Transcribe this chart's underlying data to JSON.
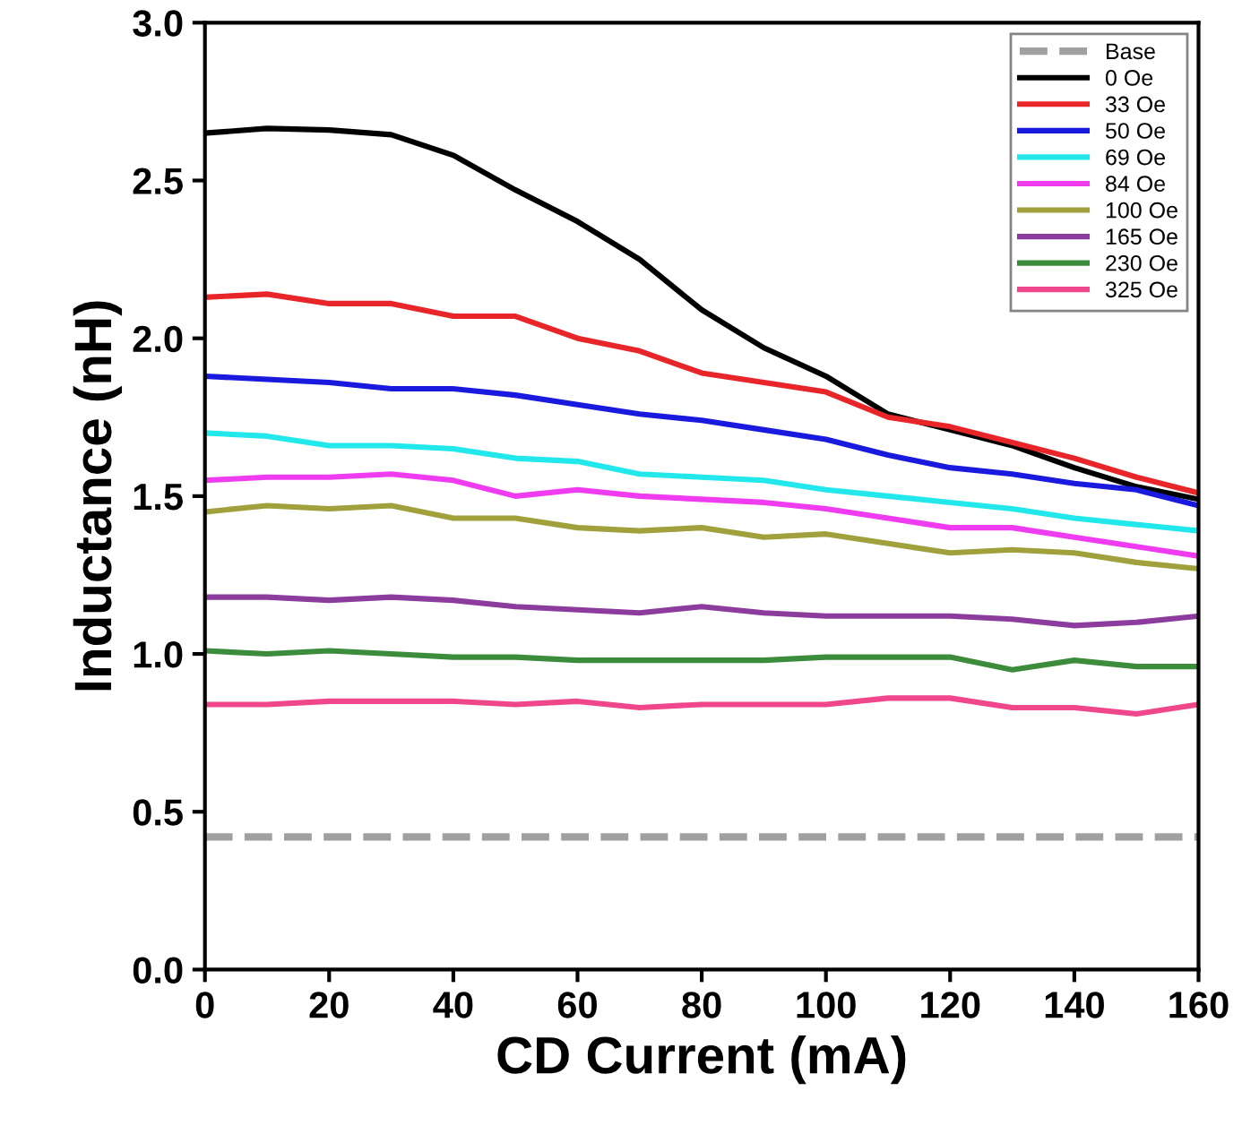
{
  "chart_data": {
    "type": "line",
    "xlabel": "CD Current (mA)",
    "ylabel": "Inductance (nH)",
    "x": [
      0,
      10,
      20,
      30,
      40,
      50,
      60,
      70,
      80,
      90,
      100,
      110,
      120,
      130,
      140,
      150,
      160
    ],
    "xlim": [
      0,
      160
    ],
    "xticks": [
      0,
      20,
      40,
      60,
      80,
      100,
      120,
      140,
      160
    ],
    "ylim": [
      0,
      3.0
    ],
    "yticks": [
      {
        "value": 0,
        "label": "0.0"
      },
      {
        "value": 0.5,
        "label": "0.5"
      },
      {
        "value": 1,
        "label": "1.0"
      },
      {
        "value": 1.5,
        "label": "1.5"
      },
      {
        "value": 2,
        "label": "2.0"
      },
      {
        "value": 2.5,
        "label": "2.5"
      },
      {
        "value": 3,
        "label": "3.0"
      }
    ],
    "grid": false,
    "legend": "top right",
    "marker": "none",
    "series": [
      {
        "name": "Base",
        "color": "#a0a0a0",
        "line_style": "dashed",
        "x": [
          0,
          160
        ],
        "values": [
          0.42,
          0.42
        ]
      },
      {
        "name": "0 Oe",
        "color": "#000000",
        "values": [
          2.65,
          2.665,
          2.66,
          2.645,
          2.58,
          2.47,
          2.37,
          2.25,
          2.09,
          1.97,
          1.88,
          1.76,
          1.71,
          1.66,
          1.59,
          1.53,
          1.49
        ]
      },
      {
        "name": "33 Oe",
        "color": "#e8262a",
        "values": [
          2.13,
          2.14,
          2.11,
          2.11,
          2.07,
          2.07,
          2.0,
          1.96,
          1.89,
          1.86,
          1.83,
          1.75,
          1.72,
          1.67,
          1.62,
          1.56,
          1.51
        ]
      },
      {
        "name": "50 Oe",
        "color": "#1a1adf",
        "values": [
          1.88,
          1.87,
          1.86,
          1.84,
          1.84,
          1.82,
          1.79,
          1.76,
          1.74,
          1.71,
          1.68,
          1.63,
          1.59,
          1.57,
          1.54,
          1.52,
          1.47
        ]
      },
      {
        "name": "69 Oe",
        "color": "#22e8ec",
        "values": [
          1.7,
          1.69,
          1.66,
          1.66,
          1.65,
          1.62,
          1.61,
          1.57,
          1.56,
          1.55,
          1.52,
          1.5,
          1.48,
          1.46,
          1.43,
          1.41,
          1.39
        ]
      },
      {
        "name": "84 Oe",
        "color": "#f03cf0",
        "values": [
          1.55,
          1.56,
          1.56,
          1.57,
          1.55,
          1.5,
          1.52,
          1.5,
          1.49,
          1.48,
          1.46,
          1.43,
          1.4,
          1.4,
          1.37,
          1.34,
          1.31
        ]
      },
      {
        "name": "100 Oe",
        "color": "#a0a03c",
        "values": [
          1.45,
          1.47,
          1.46,
          1.47,
          1.43,
          1.43,
          1.4,
          1.39,
          1.4,
          1.37,
          1.38,
          1.35,
          1.32,
          1.33,
          1.32,
          1.29,
          1.27
        ]
      },
      {
        "name": "165 Oe",
        "color": "#8c3c9c",
        "values": [
          1.18,
          1.18,
          1.17,
          1.18,
          1.17,
          1.15,
          1.14,
          1.13,
          1.15,
          1.13,
          1.12,
          1.12,
          1.12,
          1.11,
          1.09,
          1.1,
          1.12
        ]
      },
      {
        "name": "230 Oe",
        "color": "#3c8c3c",
        "values": [
          1.01,
          1.0,
          1.01,
          1.0,
          0.99,
          0.99,
          0.98,
          0.98,
          0.98,
          0.98,
          0.99,
          0.99,
          0.99,
          0.95,
          0.98,
          0.96,
          0.96
        ]
      },
      {
        "name": "325 Oe",
        "color": "#f0468c",
        "values": [
          0.84,
          0.84,
          0.85,
          0.85,
          0.85,
          0.84,
          0.85,
          0.83,
          0.84,
          0.84,
          0.84,
          0.86,
          0.86,
          0.83,
          0.83,
          0.81,
          0.84
        ]
      }
    ]
  }
}
